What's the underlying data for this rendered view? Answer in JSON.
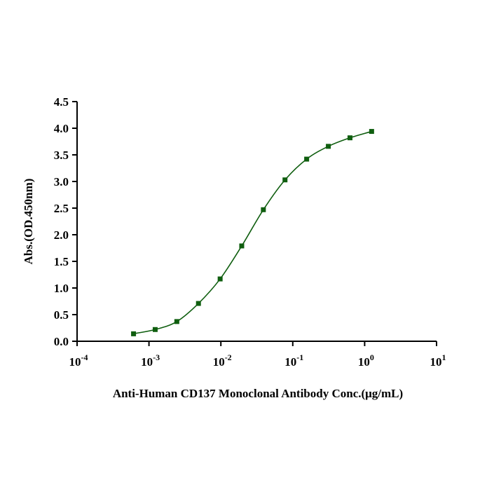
{
  "chart_data": {
    "type": "scatter",
    "title": "",
    "xlabel": "Anti-Human CD137 Monoclonal Antibody Conc.(μg/mL)",
    "ylabel": "Abs.(OD.450nm)",
    "x_scale": "log",
    "xlim": [
      0.0001,
      10
    ],
    "ylim": [
      0,
      4.5
    ],
    "x_ticks": [
      {
        "value": 0.0001,
        "base": "10",
        "exp": "-4"
      },
      {
        "value": 0.001,
        "base": "10",
        "exp": "-3"
      },
      {
        "value": 0.01,
        "base": "10",
        "exp": "-2"
      },
      {
        "value": 0.1,
        "base": "10",
        "exp": "-1"
      },
      {
        "value": 1,
        "base": "10",
        "exp": "0"
      },
      {
        "value": 10,
        "base": "10",
        "exp": "1"
      }
    ],
    "y_ticks": [
      "0.0",
      "0.5",
      "1.0",
      "1.5",
      "2.0",
      "2.5",
      "3.0",
      "3.5",
      "4.0",
      "4.5"
    ],
    "grid": false,
    "legend": "none",
    "color": "#0f5e0f",
    "series": [
      {
        "x": [
          0.00061,
          0.00122,
          0.00244,
          0.00488,
          0.00977,
          0.0195,
          0.039,
          0.078,
          0.156,
          0.3125,
          0.625,
          1.25
        ],
        "y": [
          0.14,
          0.22,
          0.37,
          0.71,
          1.17,
          1.79,
          2.47,
          3.03,
          3.42,
          3.66,
          3.82,
          3.94
        ]
      }
    ]
  }
}
